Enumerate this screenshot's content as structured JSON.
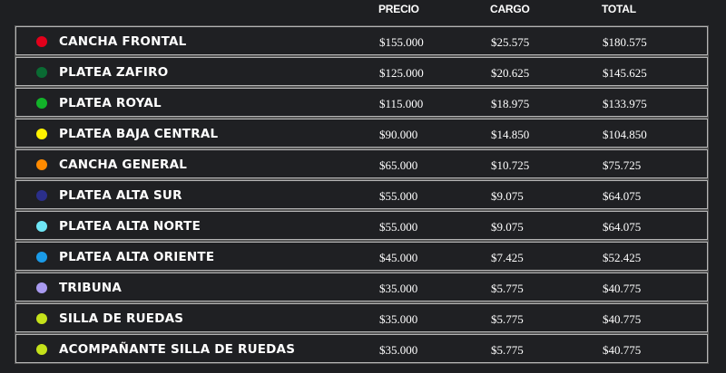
{
  "headers": {
    "price": "PRECIO",
    "charge": "CARGO",
    "total": "TOTAL"
  },
  "rows": [
    {
      "name": "CANCHA FRONTAL",
      "color": "#e3001b",
      "price": "$155.000",
      "charge": "$25.575",
      "total": "$180.575"
    },
    {
      "name": "PLATEA ZAFIRO",
      "color": "#0a6b33",
      "price": "$125.000",
      "charge": "$20.625",
      "total": "$145.625"
    },
    {
      "name": "PLATEA ROYAL",
      "color": "#12b229",
      "price": "$115.000",
      "charge": "$18.975",
      "total": "$133.975"
    },
    {
      "name": "PLATEA BAJA CENTRAL",
      "color": "#fff200",
      "price": "$90.000",
      "charge": "$14.850",
      "total": "$104.850"
    },
    {
      "name": "CANCHA GENERAL",
      "color": "#ff8a00",
      "price": "$65.000",
      "charge": "$10.725",
      "total": "$75.725"
    },
    {
      "name": "PLATEA ALTA SUR",
      "color": "#2b2f8a",
      "price": "$55.000",
      "charge": "$9.075",
      "total": "$64.075"
    },
    {
      "name": "PLATEA ALTA NORTE",
      "color": "#6ee6f5",
      "price": "$55.000",
      "charge": "$9.075",
      "total": "$64.075"
    },
    {
      "name": "PLATEA ALTA ORIENTE",
      "color": "#1a9be8",
      "price": "$45.000",
      "charge": "$7.425",
      "total": "$52.425"
    },
    {
      "name": "TRIBUNA",
      "color": "#a99af0",
      "price": "$35.000",
      "charge": "$5.775",
      "total": "$40.775"
    },
    {
      "name": "SILLA DE RUEDAS",
      "color": "#c5e21a",
      "price": "$35.000",
      "charge": "$5.775",
      "total": "$40.775"
    },
    {
      "name": "ACOMPAÑANTE SILLA DE RUEDAS",
      "color": "#c5e21a",
      "price": "$35.000",
      "charge": "$5.775",
      "total": "$40.775"
    }
  ]
}
